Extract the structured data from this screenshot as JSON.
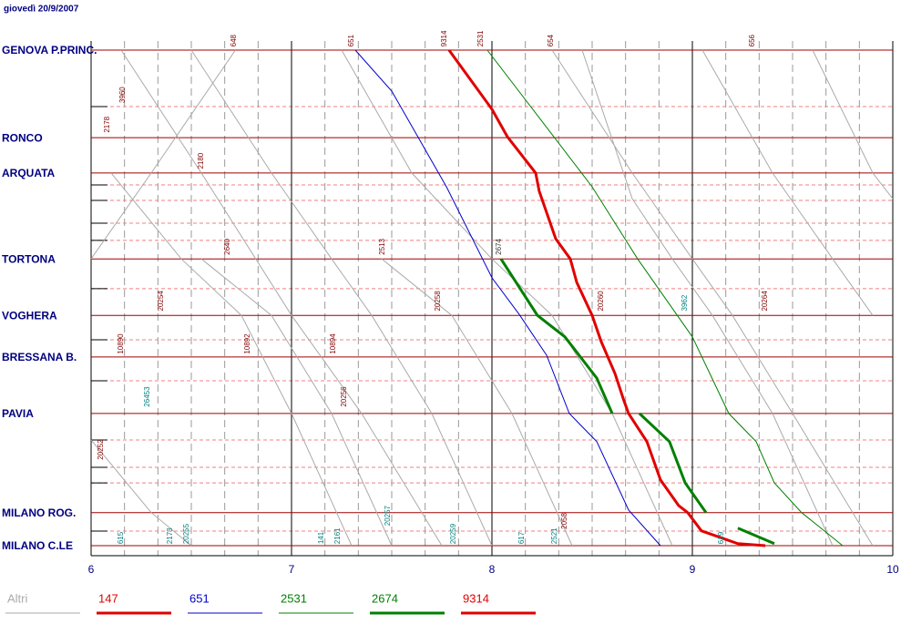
{
  "header": {
    "date": "giovedì 20/9/2007"
  },
  "chart_data": {
    "type": "line",
    "xlim": [
      6,
      10
    ],
    "xticks": [
      6,
      7,
      8,
      9,
      10
    ],
    "ylim": [
      0,
      150
    ],
    "yticks": [
      {
        "value": 0,
        "label": "GENOVA P.PRINC."
      },
      {
        "value": 26.5,
        "label": "RONCO"
      },
      {
        "value": 37.2,
        "label": "ARQUATA"
      },
      {
        "value": 63.2,
        "label": "TORTONA"
      },
      {
        "value": 80.3,
        "label": "VOGHERA"
      },
      {
        "value": 92.9,
        "label": "BRESSANA B."
      },
      {
        "value": 110,
        "label": "PAVIA"
      },
      {
        "value": 140,
        "label": "MILANO ROG."
      },
      {
        "value": 150,
        "label": "MILANO C.LE"
      }
    ],
    "minor_stations": [
      17.1,
      40.8,
      45.5,
      52.4,
      57.6,
      72.2,
      87.7,
      100.1,
      118,
      126.3,
      131,
      145.6
    ],
    "grid": true,
    "series": [
      {
        "name": "Altri",
        "color": "#aaaaaa",
        "width": 1,
        "x": [
          6.15,
          6.55,
          7.0,
          7.35,
          7.75,
          null,
          6.72,
          6.3,
          6.0,
          null,
          7.3,
          7.0,
          6.75,
          6.45,
          6.1,
          null,
          8.0,
          7.7,
          7.4,
          7.2,
          6.9,
          6.5,
          null,
          8.3,
          8.7,
          9.0,
          9.2,
          9.5,
          9.9,
          null,
          8.9,
          8.6,
          8.3,
          8.0,
          7.6,
          7.25,
          null,
          9.7,
          9.4,
          9.1,
          8.9,
          8.7,
          8.45,
          null,
          9.05,
          9.4,
          9.7,
          9.9,
          null,
          9.6,
          9.9,
          10.0,
          null,
          6.0,
          6.3,
          6.5,
          null,
          7.45,
          7.8,
          8.1,
          8.4,
          null,
          6.55,
          6.9,
          7.2,
          7.5
        ],
        "values": [
          0,
          37.2,
          80.3,
          110,
          150,
          null,
          0,
          37.2,
          63.2,
          null,
          150,
          110,
          80.3,
          63.2,
          37.2,
          null,
          150,
          110,
          80.3,
          63.2,
          37.2,
          0,
          null,
          0,
          37.2,
          63.2,
          80.3,
          110,
          150,
          null,
          150,
          110,
          80.3,
          63.2,
          37.2,
          0,
          null,
          150,
          110,
          80.3,
          63.2,
          45,
          0,
          null,
          0,
          37.2,
          63.2,
          80.3,
          null,
          0,
          37.2,
          45,
          null,
          118,
          140,
          150,
          null,
          63.2,
          80.3,
          110,
          150,
          null,
          63.2,
          80.3,
          110,
          150
        ]
      },
      {
        "name": "147",
        "color": "#e00000",
        "width": 3,
        "x": [
          8.977,
          9.045,
          9.227,
          9.364
        ],
        "values": [
          140,
          145.5,
          149.4,
          150
        ]
      },
      {
        "name": "651",
        "color": "#0000cc",
        "width": 1,
        "x": [
          7.318,
          7.5,
          7.773,
          8.0,
          8.136,
          8.273,
          8.386,
          8.523,
          8.682,
          8.841
        ],
        "values": [
          0,
          12.4,
          41.4,
          68.9,
          80,
          92.4,
          110,
          118.5,
          139.2,
          150
        ]
      },
      {
        "name": "2531",
        "color": "#008000",
        "width": 1,
        "x": [
          7.977,
          8.273,
          8.5,
          8.727,
          9.0,
          9.182,
          9.318,
          9.409,
          9.545,
          9.75
        ],
        "values": [
          0,
          23.4,
          41.4,
          63.2,
          86.8,
          110,
          118.5,
          131,
          140,
          150
        ]
      },
      {
        "name": "2674",
        "color": "#008000",
        "width": 3,
        "x": [
          8.045,
          8.227,
          8.364,
          8.523,
          8.6,
          null,
          8.736,
          8.886,
          8.964,
          9.068,
          null,
          9.227,
          9.409
        ],
        "values": [
          63.2,
          80.3,
          86.8,
          99.3,
          110,
          null,
          110,
          118.5,
          131,
          140,
          null,
          144.7,
          149.4
        ]
      },
      {
        "name": "9314",
        "color": "#e00000",
        "width": 3,
        "x": [
          7.786,
          8.0,
          8.077,
          8.218,
          8.236,
          8.318,
          8.391,
          8.423,
          8.5,
          8.545,
          8.614,
          8.659,
          8.682,
          8.773,
          8.841,
          8.932,
          8.977
        ],
        "values": [
          0,
          17.9,
          26.2,
          37.2,
          42.7,
          57.1,
          63.2,
          70.3,
          80.3,
          88.2,
          97.9,
          106.2,
          110,
          118.5,
          130.1,
          137.9,
          140
        ]
      }
    ],
    "annotations": [
      {
        "text": "648",
        "x": 6.714,
        "y": -1,
        "color": "#800000"
      },
      {
        "text": "651",
        "x": 7.3,
        "y": -1,
        "color": "#800000"
      },
      {
        "text": "9314",
        "x": 7.764,
        "y": -1,
        "color": "#800000"
      },
      {
        "text": "2531",
        "x": 7.945,
        "y": -1,
        "color": "#800000"
      },
      {
        "text": "654",
        "x": 8.295,
        "y": -1,
        "color": "#800000"
      },
      {
        "text": "656",
        "x": 9.3,
        "y": -1,
        "color": "#800000"
      },
      {
        "text": "3960",
        "x": 6.159,
        "y": 16,
        "color": "#800000"
      },
      {
        "text": "2178",
        "x": 6.082,
        "y": 25,
        "color": "#800000"
      },
      {
        "text": "2180",
        "x": 6.55,
        "y": 36,
        "color": "#800000"
      },
      {
        "text": "2640",
        "x": 6.682,
        "y": 62,
        "color": "#800000"
      },
      {
        "text": "2513",
        "x": 7.455,
        "y": 62,
        "color": "#800000"
      },
      {
        "text": "2674",
        "x": 8.036,
        "y": 62,
        "color": "#333333"
      },
      {
        "text": "20254",
        "x": 6.35,
        "y": 79,
        "color": "#800000"
      },
      {
        "text": "20258",
        "x": 7.732,
        "y": 79,
        "color": "#800000"
      },
      {
        "text": "20260",
        "x": 8.545,
        "y": 79,
        "color": "#800000"
      },
      {
        "text": "3962",
        "x": 8.964,
        "y": 79,
        "color": "#008080"
      },
      {
        "text": "20264",
        "x": 9.364,
        "y": 79,
        "color": "#800000"
      },
      {
        "text": "10890",
        "x": 6.15,
        "y": 92,
        "color": "#800000"
      },
      {
        "text": "10892",
        "x": 6.782,
        "y": 92,
        "color": "#800000"
      },
      {
        "text": "10894",
        "x": 7.209,
        "y": 92,
        "color": "#800000"
      },
      {
        "text": "26453",
        "x": 6.282,
        "y": 108,
        "color": "#008080"
      },
      {
        "text": "20256",
        "x": 7.264,
        "y": 108,
        "color": "#800000"
      },
      {
        "text": "20252",
        "x": 6.05,
        "y": 124,
        "color": "#800000"
      },
      {
        "text": "615",
        "x": 6.15,
        "y": 149.5,
        "color": "#008080"
      },
      {
        "text": "2173",
        "x": 6.395,
        "y": 149.5,
        "color": "#008080"
      },
      {
        "text": "20255",
        "x": 6.477,
        "y": 149.5,
        "color": "#008080"
      },
      {
        "text": "141",
        "x": 7.15,
        "y": 149.5,
        "color": "#008080"
      },
      {
        "text": "2161",
        "x": 7.232,
        "y": 149.5,
        "color": "#008080"
      },
      {
        "text": "20257",
        "x": 7.482,
        "y": 144,
        "color": "#008080"
      },
      {
        "text": "20259",
        "x": 7.809,
        "y": 149.5,
        "color": "#008080"
      },
      {
        "text": "617",
        "x": 8.15,
        "y": 149.5,
        "color": "#008080"
      },
      {
        "text": "2521",
        "x": 8.314,
        "y": 149.5,
        "color": "#008080"
      },
      {
        "text": "2058",
        "x": 8.364,
        "y": 145,
        "color": "#800000"
      },
      {
        "text": "619",
        "x": 9.145,
        "y": 149.5,
        "color": "#008080"
      }
    ]
  }
}
